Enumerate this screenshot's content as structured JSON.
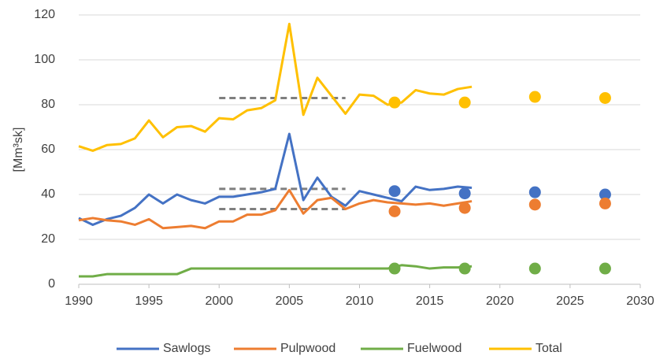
{
  "chart_data": {
    "type": "line",
    "y_label": "[Mm³sk]",
    "x": [
      1990,
      1991,
      1992,
      1993,
      1994,
      1995,
      1996,
      1997,
      1998,
      1999,
      2000,
      2001,
      2002,
      2003,
      2004,
      2005,
      2006,
      2007,
      2008,
      2009,
      2010,
      2011,
      2012,
      2013,
      2014,
      2015,
      2016,
      2017,
      2018
    ],
    "xlim": [
      1990,
      2030
    ],
    "xticks": [
      1990,
      1995,
      2000,
      2005,
      2010,
      2015,
      2020,
      2025,
      2030
    ],
    "ylim": [
      0,
      120
    ],
    "yticks": [
      0,
      20,
      40,
      60,
      80,
      100,
      120
    ],
    "grid": true,
    "legend": "bottom",
    "series": [
      {
        "name": "Sawlogs",
        "color": "#4472c4",
        "values": [
          29.5,
          26.5,
          29,
          30.5,
          34,
          40,
          36,
          40,
          37.5,
          36,
          39,
          39,
          40,
          41,
          42.5,
          67,
          37.5,
          47.5,
          39,
          35,
          41.5,
          40,
          38.5,
          37,
          43.5,
          42,
          42.5,
          43.5,
          43
        ],
        "projection": {
          "x": [
            2012.5,
            2017.5,
            2022.5,
            2027.5
          ],
          "values": [
            41.5,
            40.5,
            41,
            40
          ]
        },
        "average": {
          "x": [
            2000,
            2009
          ],
          "value": 42.5,
          "color": "#7f7f7f"
        }
      },
      {
        "name": "Pulpwood",
        "color": "#ed7d31",
        "values": [
          28.5,
          29.5,
          28.5,
          28,
          26.5,
          29,
          25,
          25.5,
          26,
          25,
          28,
          28,
          31,
          31,
          33,
          42,
          31.5,
          37.5,
          38.5,
          33.5,
          36,
          37.5,
          36.5,
          36,
          35.5,
          36,
          35,
          36,
          37
        ],
        "projection": {
          "x": [
            2012.5,
            2017.5,
            2022.5,
            2027.5
          ],
          "values": [
            32.5,
            34,
            35.5,
            36
          ]
        },
        "average": {
          "x": [
            2000,
            2009
          ],
          "value": 33.5,
          "color": "#7f7f7f"
        }
      },
      {
        "name": "Fuelwood",
        "color": "#70ad47",
        "values": [
          3.5,
          3.5,
          4.5,
          4.5,
          4.5,
          4.5,
          4.5,
          4.5,
          7,
          7,
          7,
          7,
          7,
          7,
          7,
          7,
          7,
          7,
          7,
          7,
          7,
          7,
          7,
          8.5,
          8,
          7,
          7.5,
          7.5,
          8
        ],
        "projection": {
          "x": [
            2012.5,
            2017.5,
            2022.5,
            2027.5
          ],
          "values": [
            7,
            7,
            7,
            7
          ]
        },
        "average": {
          "x": [
            2000,
            2009
          ],
          "value": 7,
          "color": "#7f7f7f"
        }
      },
      {
        "name": "Total",
        "color": "#ffc000",
        "values": [
          61.5,
          59.5,
          62,
          62.5,
          65,
          73,
          65.5,
          70,
          70.5,
          68,
          74,
          73.5,
          77.5,
          78.5,
          82,
          116,
          75.5,
          92,
          84,
          76,
          84.5,
          84,
          80,
          81,
          86.5,
          85,
          84.5,
          87,
          88
        ],
        "projection": {
          "x": [
            2012.5,
            2017.5,
            2022.5,
            2027.5
          ],
          "values": [
            81,
            81,
            83.5,
            83
          ]
        },
        "average": {
          "x": [
            2000,
            2009
          ],
          "value": 83,
          "color": "#7f7f7f"
        }
      }
    ]
  }
}
